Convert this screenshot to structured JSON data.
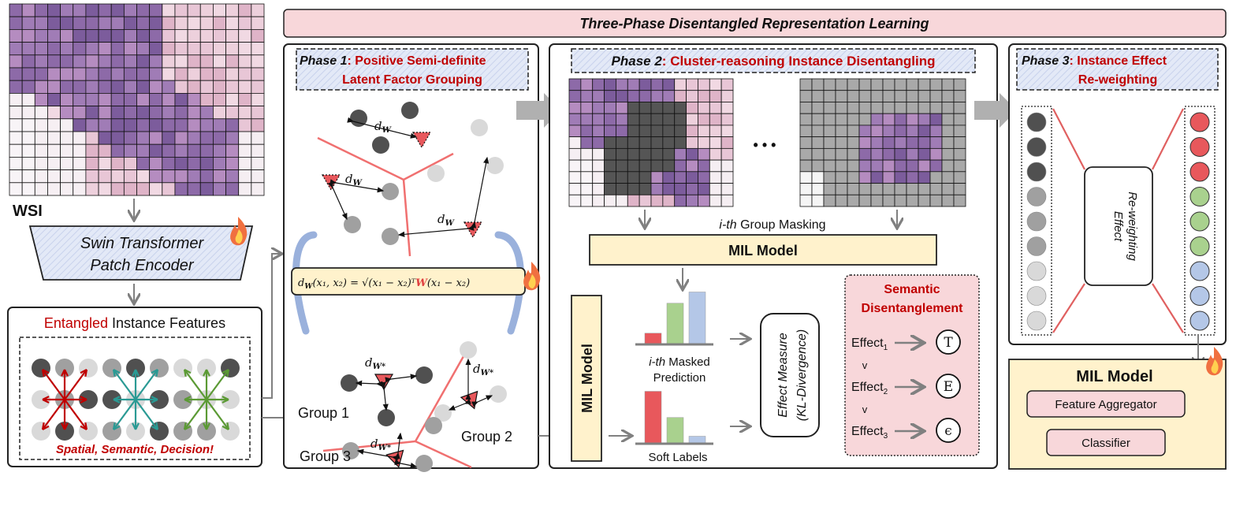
{
  "banner": {
    "title": "Three-Phase Disentangled Representation Learning"
  },
  "left": {
    "wsi_label": "WSI",
    "encoder_line1": "Swin Transformer",
    "encoder_line2": "Patch Encoder",
    "features_title_red": "Entangled",
    "features_title_rest": " Instance Features",
    "features_caption": "Spatial, Semantic, Decision!"
  },
  "phase1": {
    "tag": "Phase 1",
    "title_line1": "Positive Semi-definite",
    "title_line2": "Latent Factor Grouping",
    "distance_label": "d",
    "distance_sub": "W",
    "distance_sub_star": "W*",
    "formula": {
      "lhs": "d",
      "lhs_sub": "W",
      "args": "(x₁, x₂) = √(x₁ − x₂)ᵀ",
      "weight": "W",
      "tail": "(x₁ − x₂)"
    },
    "groups": [
      "Group 1",
      "Group 2",
      "Group 3"
    ]
  },
  "phase2": {
    "tag": "Phase 2",
    "title": "Cluster-reasoning Instance Disentangling",
    "ellipsis": "• • •",
    "masking_italic": "i-th",
    "masking_rest": " Group Masking",
    "mil_model": "MIL Model",
    "mil_model_vertical": "MIL Model",
    "masked_pred_italic": "i-th",
    "masked_pred_rest": " Masked",
    "masked_pred_line2": "Prediction",
    "soft_labels": "Soft Labels",
    "masked_prediction_values": [
      0.15,
      0.55,
      0.7
    ],
    "soft_label_values": [
      0.7,
      0.35,
      0.1
    ],
    "effect_measure_line1": "Effect Measure",
    "effect_measure_line2": "(KL-Divergence)",
    "semantic_title_line1": "Semantic",
    "semantic_title_line2": "Disentanglement",
    "effects": [
      {
        "label": "Effect",
        "sub": "1",
        "symbol": "T"
      },
      {
        "label": "Effect",
        "sub": "2",
        "symbol": "E"
      },
      {
        "label": "Effect",
        "sub": "3",
        "symbol": "ϵ"
      }
    ],
    "comparator": "v"
  },
  "phase3": {
    "tag": "Phase 3",
    "title_line1": "Instance Effect",
    "title_line2": "Re-weighting",
    "reweight_line1": "Effect",
    "reweight_line2": "Re-weighting"
  },
  "mil_final": {
    "title": "MIL Model",
    "aggregator": "Feature Aggregator",
    "classifier": "Classifier"
  },
  "colors": {
    "accent_red": "#c00000",
    "banner_pink": "#f8d7da",
    "mil_yellow": "#fff2cc",
    "bar_red": "#e8585c",
    "bar_green": "#a9d18e",
    "bar_blue": "#b4c7e7",
    "dark_node": "#505050",
    "mid_node": "#a0a0a0",
    "light_node": "#d9d9d9"
  }
}
